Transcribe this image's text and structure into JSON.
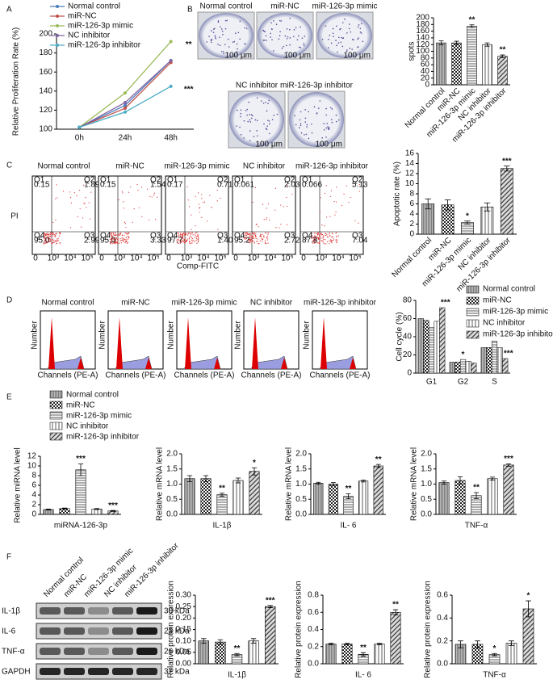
{
  "panel_labels": [
    "A",
    "B",
    "C",
    "D",
    "E",
    "F"
  ],
  "colony": {
    "titles": [
      "Normal control",
      "miR-NC",
      "miR-126-3p mimic",
      "NC inhibitor",
      "miR-126-3p inhibitor"
    ],
    "scale": "100 μm"
  },
  "flow": {
    "titles": [
      "Normal control",
      "miR-NC",
      "miR-126-3p mimic",
      "NC inhibitor",
      "miR-126-3p inhibitor"
    ],
    "y_label": "PI",
    "x_label": "Comp-FITC",
    "quadrant_names": [
      "Q1",
      "Q2",
      "Q3",
      "Q4"
    ],
    "axis_ticks": [
      "0",
      "10³",
      "10⁴",
      "10⁵"
    ],
    "plots": [
      [
        "0.15",
        "1.89",
        "2.99",
        "95.0"
      ],
      [
        "0.15",
        "1.54",
        "3.33",
        "95.0"
      ],
      [
        "0.17",
        "0.71",
        "1.40",
        "97.7"
      ],
      [
        "0.061",
        "2.03",
        "2.72",
        "95.2"
      ],
      [
        "0.066",
        "5.13",
        "7.04",
        "87.8"
      ]
    ]
  },
  "histograms": {
    "titles": [
      "Normal control",
      "miR-NC",
      "miR-126-3p mimic",
      "NC inhibitor",
      "miR-126-3p inhibitor"
    ],
    "y_label": "Number",
    "x_label": "Channels (PE-A)"
  },
  "legend_e": [
    "Normal control",
    "miR-NC",
    "miR-126-3p mimic",
    "NC inhibitor",
    "miR-126-3p inhibitor"
  ],
  "blot": {
    "columns": [
      "Normal control",
      "miR-NC",
      "miR-126-3p mimic",
      "NC inhibitor",
      "miR-126-3p inhibitor"
    ],
    "rows": [
      {
        "name": "IL-1β",
        "size": "30 kDa"
      },
      {
        "name": "IL-6",
        "size": "23 kDa"
      },
      {
        "name": "TNF-α",
        "size": "26 kDa"
      },
      {
        "name": "GAPDH",
        "size": "37 kDa"
      }
    ]
  },
  "chart_data": [
    {
      "type": "line",
      "ylabel": "Relative Proliferation Rate (%)",
      "categories": [
        "0h",
        "24h",
        "48h"
      ],
      "ylim": [
        100,
        200
      ],
      "yticks": [
        100,
        120,
        140,
        160,
        180,
        200
      ],
      "series": [
        {
          "name": "Normal control",
          "color": "#4a7ebb",
          "values": [
            102,
            125,
            172
          ]
        },
        {
          "name": "miR-NC",
          "color": "#c0504d",
          "values": [
            102,
            122,
            170
          ]
        },
        {
          "name": "miR-126-3p mimic",
          "color": "#9bbb59",
          "values": [
            102,
            138,
            192
          ],
          "significance": "**"
        },
        {
          "name": "NC inhibitor",
          "color": "#8064a2",
          "values": [
            102,
            128,
            172
          ]
        },
        {
          "name": "miR-126-3p inhibitor",
          "color": "#4bacc6",
          "values": [
            102,
            118,
            145
          ],
          "significance": "***"
        }
      ]
    },
    {
      "type": "bar",
      "ylabel": "spots",
      "categories": [
        "Normal control",
        "miR-NC",
        "miR-126-3p mimic",
        "NC inhibitor",
        "miR-126-3p inhibitor"
      ],
      "xtick_rotation": 45,
      "values": [
        125,
        125,
        175,
        120,
        85
      ],
      "errors": [
        6,
        5,
        4,
        5,
        4
      ],
      "significance": [
        null,
        null,
        "**",
        null,
        "**"
      ],
      "ylim": [
        0,
        200
      ],
      "yticks": [
        0,
        20,
        40,
        60,
        80,
        100,
        120,
        140,
        160,
        180,
        200
      ]
    },
    {
      "type": "bar",
      "ylabel": "Apoptotic rate (%)",
      "categories": [
        "Normal control",
        "miR-NC",
        "miR-126-3p mimic",
        "NC inhibitor",
        "miR-126-3p inhibitor"
      ],
      "xtick_rotation": 45,
      "values": [
        6,
        5.8,
        2.3,
        5.4,
        13
      ],
      "errors": [
        1,
        1,
        0.3,
        0.8,
        0.5
      ],
      "significance": [
        null,
        null,
        "*",
        null,
        "***"
      ],
      "ylim": [
        0,
        16
      ],
      "yticks": [
        0,
        2,
        4,
        6,
        8,
        10,
        12,
        14,
        16
      ]
    },
    {
      "type": "bar",
      "ylabel": "Cell cycle (%)",
      "categories": [
        "G1",
        "G2",
        "S"
      ],
      "ylim": [
        0,
        80
      ],
      "yticks": [
        0,
        20,
        40,
        60,
        80
      ],
      "series": [
        {
          "name": "Normal control",
          "values": [
            60,
            12,
            28
          ]
        },
        {
          "name": "miR-NC",
          "values": [
            58,
            12,
            28
          ]
        },
        {
          "name": "miR-126-3p mimic",
          "values": [
            50,
            15,
            35
          ],
          "significance": [
            null,
            "*",
            null
          ]
        },
        {
          "name": "NC inhibitor",
          "values": [
            57,
            13,
            28
          ]
        },
        {
          "name": "miR-126-3p inhibitor",
          "values": [
            72,
            11,
            16
          ],
          "significance": [
            "***",
            null,
            "***"
          ]
        }
      ]
    },
    {
      "type": "bar",
      "ylabel": "Relative miRNA level",
      "xlabel": "miRNA-126-3p",
      "values": [
        1,
        1.2,
        9.2,
        1.1,
        0.7
      ],
      "errors": [
        0.1,
        0.1,
        1.2,
        0.1,
        0.1
      ],
      "significance": [
        null,
        null,
        "***",
        null,
        "***"
      ],
      "ylim": [
        0,
        12
      ],
      "yticks": [
        0,
        2,
        4,
        6,
        8,
        10,
        12
      ]
    },
    {
      "type": "bar",
      "ylabel": "Relative mRNA level",
      "xlabel": "IL-1β",
      "values": [
        1.18,
        1.18,
        0.65,
        1.12,
        1.42
      ],
      "errors": [
        0.1,
        0.1,
        0.05,
        0.08,
        0.12
      ],
      "significance": [
        null,
        null,
        "**",
        null,
        "*"
      ],
      "ylim": [
        0,
        2
      ],
      "yticks": [
        {
          "value": 0,
          "label": "0.0"
        },
        0.5,
        {
          "value": 1,
          "label": "1.0"
        },
        1.5,
        {
          "value": 2,
          "label": "2.0"
        }
      ]
    },
    {
      "type": "bar",
      "ylabel": "Relative mRNA level",
      "xlabel": "IL- 6",
      "values": [
        1.03,
        1.0,
        0.6,
        1.1,
        1.6
      ],
      "errors": [
        0.03,
        0.05,
        0.08,
        0.03,
        0.05
      ],
      "significance": [
        null,
        null,
        "**",
        null,
        "**"
      ],
      "ylim": [
        0,
        2
      ],
      "yticks": [
        {
          "value": 0,
          "label": "0.0"
        },
        0.5,
        {
          "value": 1,
          "label": "1.0"
        },
        1.5,
        {
          "value": 2,
          "label": "2.0"
        }
      ]
    },
    {
      "type": "bar",
      "ylabel": "Relative mRNA level",
      "xlabel": "TNF-α",
      "values": [
        1.05,
        1.12,
        0.62,
        1.18,
        1.63
      ],
      "errors": [
        0.05,
        0.12,
        0.1,
        0.05,
        0.04
      ],
      "significance": [
        null,
        null,
        "**",
        null,
        "***"
      ],
      "ylim": [
        0,
        2
      ],
      "yticks": [
        {
          "value": 0,
          "label": "0.0"
        },
        0.5,
        {
          "value": 1,
          "label": "1.0"
        },
        1.5,
        {
          "value": 2,
          "label": "2.0"
        }
      ]
    },
    {
      "type": "bar",
      "ylabel": "Relative protein expression",
      "xlabel": "IL-1β",
      "values": [
        0.1,
        0.095,
        0.04,
        0.1,
        0.25
      ],
      "errors": [
        0.01,
        0.01,
        0.005,
        0.01,
        0.005
      ],
      "significance": [
        null,
        null,
        "**",
        null,
        "***"
      ],
      "ylim": [
        0,
        0.3
      ],
      "yticks": [
        {
          "value": 0,
          "label": "0.00"
        },
        0.05,
        {
          "value": 0.1,
          "label": "0.10"
        },
        0.15,
        {
          "value": 0.2,
          "label": "0.20"
        },
        0.25,
        {
          "value": 0.3,
          "label": "0.30"
        }
      ]
    },
    {
      "type": "bar",
      "ylabel": "Relative protein expression",
      "xlabel": "IL- 6",
      "values": [
        0.23,
        0.23,
        0.11,
        0.23,
        0.6
      ],
      "errors": [
        0.01,
        0.01,
        0.02,
        0.01,
        0.03
      ],
      "significance": [
        null,
        null,
        "**",
        null,
        "**"
      ],
      "ylim": [
        0,
        0.8
      ],
      "yticks": [
        {
          "value": 0,
          "label": "0.0"
        },
        0.2,
        0.4,
        0.6,
        0.8
      ]
    },
    {
      "type": "bar",
      "ylabel": "Relative protein expression",
      "xlabel": "TNF-α",
      "values": [
        0.17,
        0.17,
        0.08,
        0.18,
        0.48
      ],
      "errors": [
        0.03,
        0.03,
        0.01,
        0.02,
        0.07
      ],
      "significance": [
        null,
        null,
        "*",
        null,
        "*"
      ],
      "ylim": [
        0,
        0.6
      ],
      "yticks": [
        {
          "value": 0,
          "label": "0.0"
        },
        0.2,
        0.4,
        0.6
      ]
    }
  ]
}
